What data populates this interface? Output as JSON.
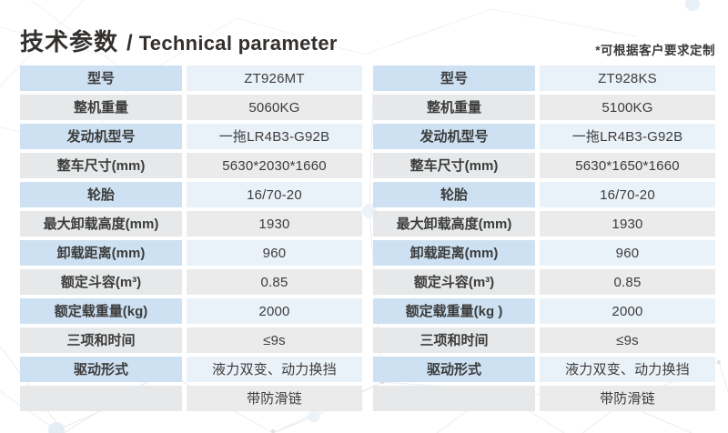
{
  "header": {
    "title_zh": "技术参数",
    "title_sep": "/",
    "title_en": "Technical parameter",
    "note": "*可根据客户要求定制"
  },
  "colors": {
    "label_blue": "#cde1f2",
    "value_blue": "#eaf2f9",
    "label_gray": "#e6e8e9",
    "value_gray": "#ebebec",
    "text": "#3c3c3c",
    "title_text": "#33302e",
    "pattern_dot_blue": "#dbe8f4",
    "pattern_line": "#e9edf1"
  },
  "tables": [
    {
      "name": "spec-table-left",
      "model_column": "ZT926MT",
      "rows": [
        {
          "label": "型号",
          "value": "ZT926MT"
        },
        {
          "label": "整机重量",
          "value": "5060KG"
        },
        {
          "label": "发动机型号",
          "value": "一拖LR4B3-G92B"
        },
        {
          "label": "整车尺寸(mm)",
          "value": "5630*2030*1660"
        },
        {
          "label": "轮胎",
          "value": "16/70-20"
        },
        {
          "label": "最大卸载高度(mm)",
          "value": "1930"
        },
        {
          "label": "卸载距离(mm)",
          "value": "960"
        },
        {
          "label": "额定斗容(m³)",
          "value": "0.85"
        },
        {
          "label": "额定载重量(kg)",
          "value": "2000"
        },
        {
          "label": "三项和时间",
          "value": "≤9s"
        },
        {
          "label": "驱动形式",
          "value": "液力双变、动力换挡"
        },
        {
          "label": "",
          "value": "带防滑链"
        }
      ]
    },
    {
      "name": "spec-table-right",
      "model_column": "ZT928KS",
      "rows": [
        {
          "label": "型号",
          "value": "ZT928KS"
        },
        {
          "label": "整机重量",
          "value": "5100KG"
        },
        {
          "label": "发动机型号",
          "value": "一拖LR4B3-G92B"
        },
        {
          "label": "整车尺寸(mm)",
          "value": "5630*1650*1660"
        },
        {
          "label": "轮胎",
          "value": "16/70-20"
        },
        {
          "label": "最大卸载高度(mm)",
          "value": "1930"
        },
        {
          "label": "卸载距离(mm)",
          "value": "960"
        },
        {
          "label": "额定斗容(m³)",
          "value": "0.85"
        },
        {
          "label": "额定载重量(kg )",
          "value": "2000"
        },
        {
          "label": "三项和时间",
          "value": "≤9s"
        },
        {
          "label": "驱动形式",
          "value": "液力双变、动力换挡"
        },
        {
          "label": "",
          "value": "带防滑链"
        }
      ]
    }
  ]
}
